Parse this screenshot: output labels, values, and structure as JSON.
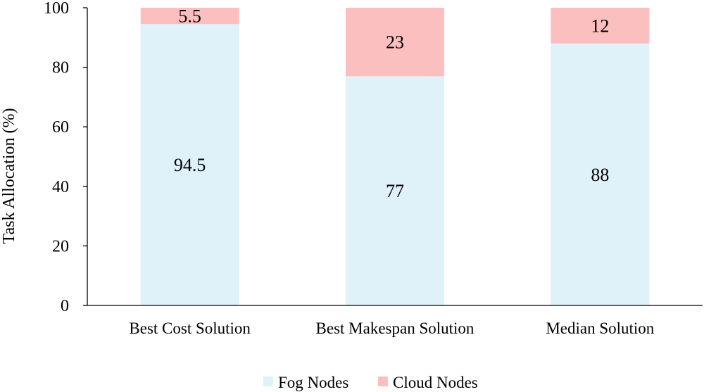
{
  "chart_data": {
    "type": "bar",
    "stacked": true,
    "orientation": "vertical",
    "categories": [
      "Best Cost Solution",
      "Best Makespan Solution",
      "Median Solution"
    ],
    "series": [
      {
        "name": "Fog Nodes",
        "values": [
          94.5,
          77,
          88
        ],
        "color": "#dff1f9"
      },
      {
        "name": "Cloud Nodes",
        "values": [
          5.5,
          23,
          12
        ],
        "color": "#fbbfbf"
      }
    ],
    "data_labels": [
      [
        "94.5",
        "77",
        "88"
      ],
      [
        "5.5",
        "23",
        "12"
      ]
    ],
    "ylabel": "Task Allocation (%)",
    "xlabel": "",
    "ylim": [
      0,
      100
    ],
    "yticks": [
      0,
      20,
      40,
      60,
      80,
      100
    ],
    "grid": false,
    "legend": {
      "position": "bottom",
      "entries": [
        "Fog Nodes",
        "Cloud Nodes"
      ]
    }
  }
}
